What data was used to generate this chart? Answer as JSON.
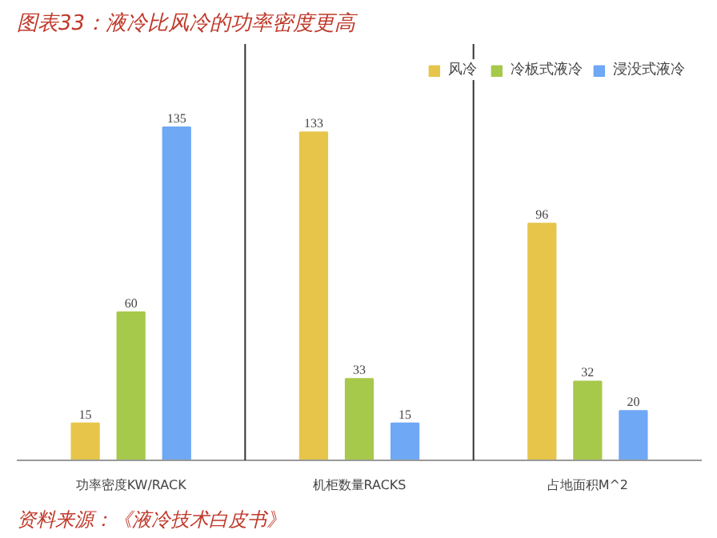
{
  "chart_data": {
    "type": "bar",
    "title": "图表33：液冷比风冷的功率密度更高",
    "categories": [
      "功率密度KW/RACK",
      "机柜数量RACKS",
      "占地面积M^2"
    ],
    "series": [
      {
        "name": "风冷",
        "color": "#e6c54a",
        "values": [
          15,
          133,
          96
        ]
      },
      {
        "name": "冷板式液冷",
        "color": "#a6c94c",
        "values": [
          60,
          33,
          32
        ]
      },
      {
        "name": "浸没式液冷",
        "color": "#6fa8f5",
        "values": [
          135,
          15,
          20
        ]
      }
    ],
    "data_labels": true,
    "legend": "top right",
    "grid": "x",
    "annotations": [
      "资料来源：《液冷技术白皮书》"
    ]
  }
}
